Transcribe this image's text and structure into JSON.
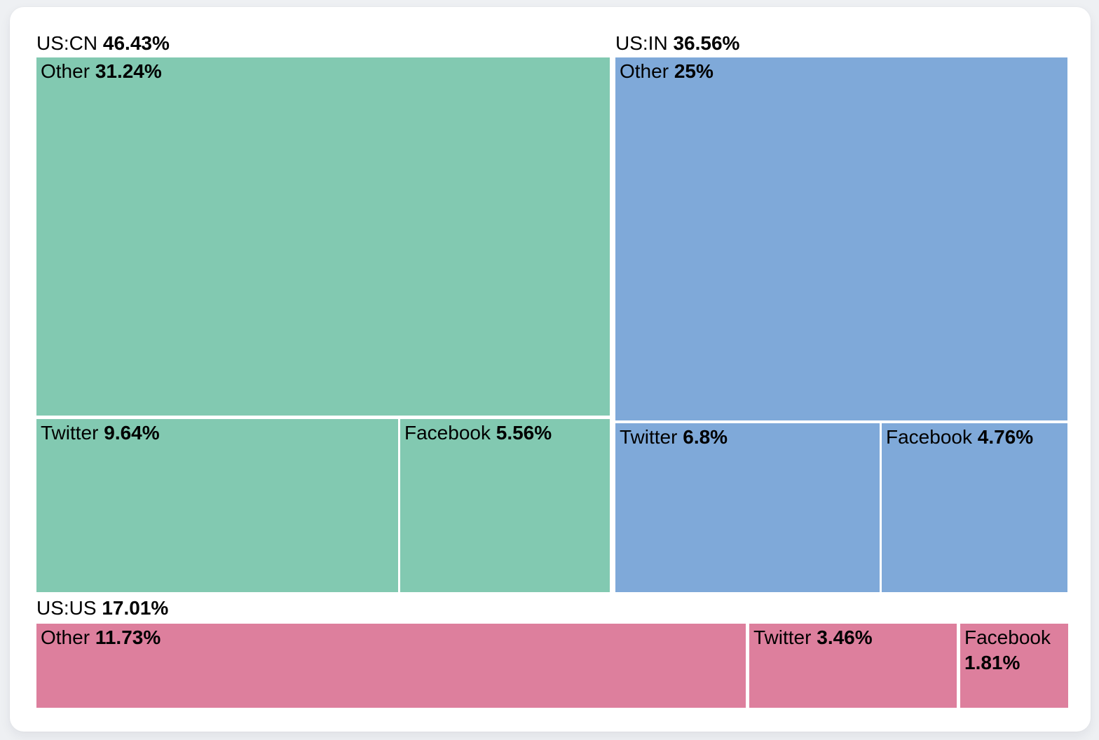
{
  "colors": {
    "page_background": "#eef0f3",
    "card_background": "#ffffff",
    "label_text": "#000000",
    "us_cn_fill": "#82C9B1",
    "us_in_fill": "#7FA9D9",
    "us_us_fill": "#DD7F9D"
  },
  "chart_data": {
    "type": "treemap",
    "unit": "%",
    "grid": false,
    "legend_position": "none",
    "groups": [
      {
        "label": "US:CN",
        "value": 46.43,
        "display": "46.43%",
        "color": "#82C9B1",
        "children": [
          {
            "label": "Other",
            "value": 31.24,
            "display": "31.24%"
          },
          {
            "label": "Twitter",
            "value": 9.64,
            "display": "9.64%"
          },
          {
            "label": "Facebook",
            "value": 5.56,
            "display": "5.56%"
          }
        ]
      },
      {
        "label": "US:IN",
        "value": 36.56,
        "display": "36.56%",
        "color": "#7FA9D9",
        "children": [
          {
            "label": "Other",
            "value": 25,
            "display": "25%"
          },
          {
            "label": "Twitter",
            "value": 6.8,
            "display": "6.8%"
          },
          {
            "label": "Facebook",
            "value": 4.76,
            "display": "4.76%"
          }
        ]
      },
      {
        "label": "US:US",
        "value": 17.01,
        "display": "17.01%",
        "color": "#DD7F9D",
        "children": [
          {
            "label": "Other",
            "value": 11.73,
            "display": "11.73%"
          },
          {
            "label": "Twitter",
            "value": 3.46,
            "display": "3.46%"
          },
          {
            "label": "Facebook",
            "value": 1.81,
            "display": "1.81%"
          }
        ]
      }
    ]
  }
}
